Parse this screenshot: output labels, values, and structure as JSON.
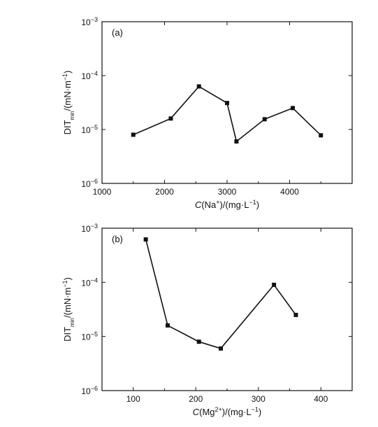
{
  "chart_data": [
    {
      "type": "line",
      "panel_label": "(a)",
      "xlabel": "C(Na+)/(mg·L−1)",
      "xlabel_parts": {
        "italic": "C",
        "pre": "(Na",
        "sup": "+",
        "mid": ")/(mg·L",
        "sup2": "−1",
        "post": ")"
      },
      "ylabel": "DITmin/(mN·m−1)",
      "ylabel_parts": {
        "main": "DIT",
        "sub": "min",
        "mid": "/(mN·m",
        "sup": "−1",
        "post": ")"
      },
      "xlim": [
        1000,
        5000
      ],
      "x_ticks": [
        1000,
        2000,
        3000,
        4000
      ],
      "x_tick_labels": [
        "1000",
        "2000",
        "3000",
        "4000"
      ],
      "y_scale": "log",
      "ylim": [
        1e-06,
        0.001
      ],
      "y_ticks": [
        1e-06,
        1e-05,
        0.0001,
        0.001
      ],
      "y_tick_labels": [
        {
          "base": "10",
          "exp": "−6"
        },
        {
          "base": "10",
          "exp": "−5"
        },
        {
          "base": "10",
          "exp": "−4"
        },
        {
          "base": "10",
          "exp": "−3"
        }
      ],
      "marker": "square",
      "grid": false,
      "series": [
        {
          "x": [
            1500,
            2100,
            2550,
            3000,
            3150,
            3600,
            4050,
            4500
          ],
          "y": [
            8e-06,
            1.6e-05,
            6.3e-05,
            3.1e-05,
            6e-06,
            1.55e-05,
            2.5e-05,
            7.8e-06
          ]
        }
      ]
    },
    {
      "type": "line",
      "panel_label": "(b)",
      "xlabel": "C(Mg2+)/(mg·L−1)",
      "xlabel_parts": {
        "italic": "C",
        "pre": "(Mg",
        "sup": "2+",
        "mid": ")/(mg·L",
        "sup2": "−1",
        "post": ")"
      },
      "ylabel": "DITmin/(mN·m−1)",
      "ylabel_parts": {
        "main": "DIT",
        "sub": "min",
        "mid": "/(mN·m",
        "sup": "−1",
        "post": ")"
      },
      "xlim": [
        50,
        450
      ],
      "x_ticks": [
        100,
        200,
        300,
        400
      ],
      "x_tick_labels": [
        "100",
        "200",
        "300",
        "400"
      ],
      "y_scale": "log",
      "ylim": [
        1e-06,
        0.001
      ],
      "y_ticks": [
        1e-06,
        1e-05,
        0.0001,
        0.001
      ],
      "y_tick_labels": [
        {
          "base": "10",
          "exp": "−6"
        },
        {
          "base": "10",
          "exp": "−5"
        },
        {
          "base": "10",
          "exp": "−4"
        },
        {
          "base": "10",
          "exp": "−3"
        }
      ],
      "marker": "square",
      "grid": false,
      "series": [
        {
          "x": [
            120,
            155,
            205,
            240,
            325,
            360
          ],
          "y": [
            0.00062,
            1.6e-05,
            8e-06,
            6e-06,
            9e-05,
            2.5e-05
          ]
        }
      ]
    }
  ]
}
